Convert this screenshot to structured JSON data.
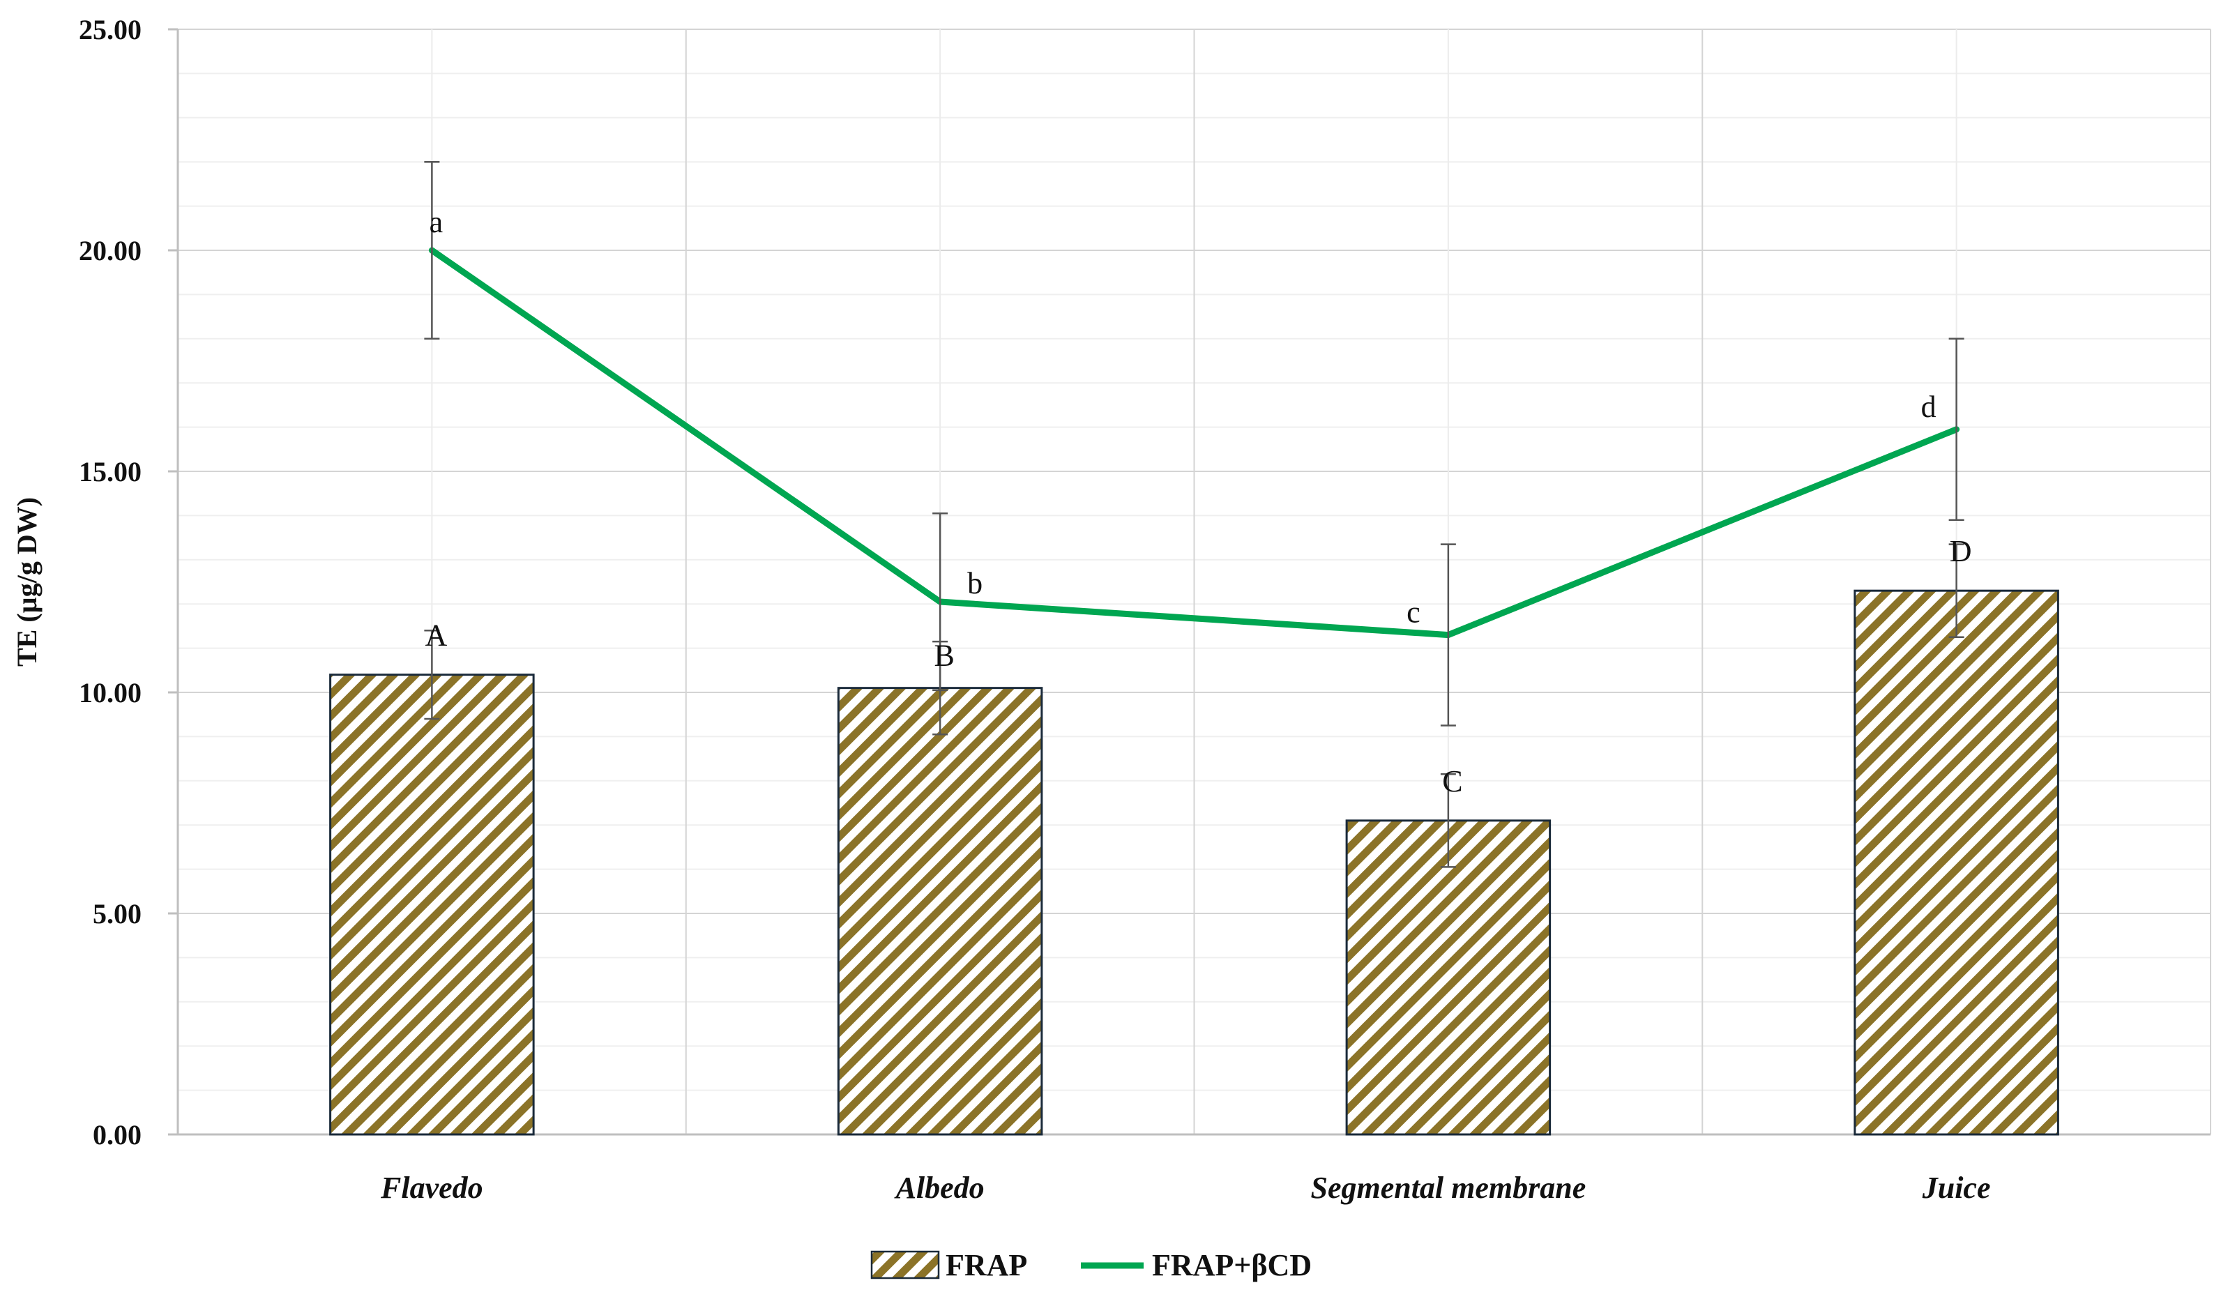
{
  "chart_data": {
    "type": "bar",
    "ylabel": "TE (µg/g DW)",
    "ylim": [
      0,
      25
    ],
    "yticks": [
      "0.00",
      "5.00",
      "10.00",
      "15.00",
      "20.00",
      "25.00"
    ],
    "grid": true,
    "legend_position": "bottom",
    "categories": [
      "Flavedo",
      "Albedo",
      "Segmental membrane",
      "Juice"
    ],
    "series": [
      {
        "name": "FRAP",
        "kind": "bar",
        "pattern": "diagonal-stripes",
        "color": "#8B7328",
        "values": [
          10.4,
          10.1,
          7.1,
          12.3
        ],
        "errors": [
          1.0,
          1.05,
          1.05,
          1.05
        ],
        "labels": [
          "A",
          "B",
          "C",
          "D"
        ]
      },
      {
        "name": "FRAP+βCD",
        "kind": "line",
        "color": "#00A651",
        "values": [
          20.0,
          12.05,
          11.3,
          15.95
        ],
        "errors": [
          2.0,
          2.0,
          2.05,
          2.05
        ],
        "labels": [
          "a",
          "b",
          "c",
          "d"
        ]
      }
    ]
  }
}
